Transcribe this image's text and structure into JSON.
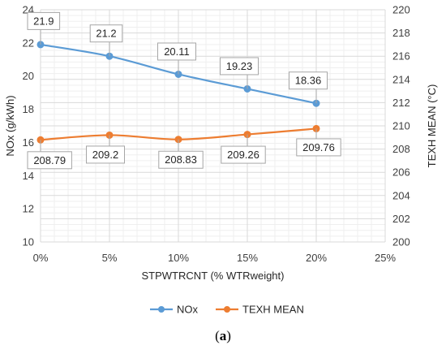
{
  "chart_data": {
    "type": "line",
    "x": [
      "0%",
      "5%",
      "10%",
      "15%",
      "20%"
    ],
    "x_ticks": [
      "0%",
      "5%",
      "10%",
      "15%",
      "20%",
      "25%"
    ],
    "x_values": [
      0,
      5,
      10,
      15,
      20
    ],
    "xlim": [
      0,
      25
    ],
    "xlabel": "STPWTRCNT (% WTRweight)",
    "ylabel_left": "NOx (g/kWh)",
    "ylabel_right": "TEXH MEAN (°C)",
    "ylim_left": [
      10,
      24
    ],
    "ylim_right": [
      200,
      220
    ],
    "y_ticks_left": [
      "10",
      "12",
      "14",
      "16",
      "18",
      "20",
      "22",
      "24"
    ],
    "y_ticks_right": [
      "200",
      "202",
      "204",
      "206",
      "208",
      "210",
      "212",
      "214",
      "216",
      "218",
      "220"
    ],
    "grid": true,
    "legend_position": "bottom",
    "series": [
      {
        "name": "NOx",
        "axis": "left",
        "color": "#5b9bd5",
        "values": [
          21.9,
          21.2,
          20.11,
          19.23,
          18.36
        ],
        "labels": [
          "21.9",
          "21.2",
          "20.11",
          "19.23",
          "18.36"
        ]
      },
      {
        "name": "TEXH MEAN",
        "axis": "right",
        "color": "#ed7d31",
        "values": [
          208.79,
          209.2,
          208.83,
          209.26,
          209.76
        ],
        "labels": [
          "208.79",
          "209.2",
          "208.83",
          "209.26",
          "209.76"
        ]
      }
    ]
  },
  "caption": {
    "open": "(",
    "letter": "a",
    "close": ")"
  }
}
